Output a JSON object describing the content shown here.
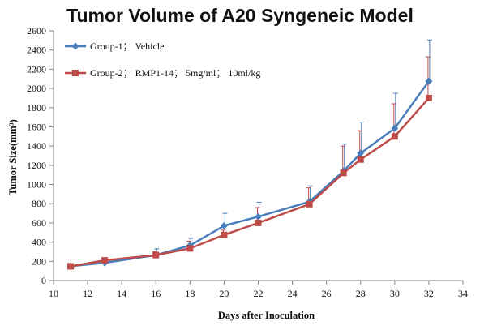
{
  "chart_data": {
    "type": "line",
    "title": "Tumor Volume of A20 Syngeneic Model",
    "xlabel": "Days after Inoculation",
    "ylabel": "Tumor Size(mm³)",
    "xlim": [
      10,
      34
    ],
    "ylim": [
      0,
      2600
    ],
    "xticks": [
      10,
      12,
      14,
      16,
      18,
      20,
      22,
      24,
      26,
      28,
      30,
      32,
      34
    ],
    "yticks": [
      0,
      200,
      400,
      600,
      800,
      1000,
      1200,
      1400,
      1600,
      1800,
      2000,
      2200,
      2400,
      2600
    ],
    "grid": false,
    "legend_position": "top-left",
    "x": [
      11,
      13,
      16,
      18,
      20,
      22,
      25,
      27,
      28,
      30,
      32
    ],
    "series": [
      {
        "name": "Group-1； Vehicle",
        "color": "#4a7ebb",
        "marker": "diamond",
        "values": [
          150,
          185,
          265,
          365,
          570,
          665,
          820,
          1140,
          1325,
          1585,
          2075
        ],
        "error_upper": [
          null,
          null,
          330,
          440,
          700,
          815,
          985,
          1420,
          1650,
          1950,
          2505
        ]
      },
      {
        "name": "Group-2； RMP1-14； 5mg/ml； 10ml/kg",
        "color": "#be4b48",
        "marker": "square",
        "values": [
          148,
          210,
          265,
          335,
          475,
          600,
          795,
          1120,
          1260,
          1500,
          1900
        ],
        "error_upper": [
          null,
          null,
          300,
          410,
          525,
          760,
          965,
          1400,
          1560,
          1840,
          2330
        ]
      }
    ]
  }
}
